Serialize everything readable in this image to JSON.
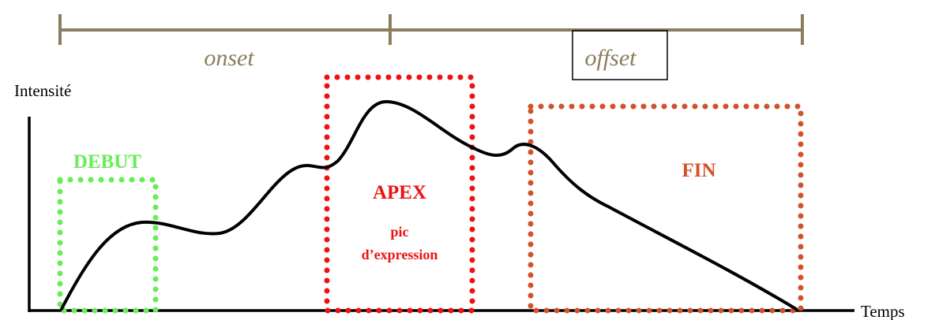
{
  "timeline": {
    "onset_label": "onset",
    "offset_label": "offset",
    "color": "#8b7d5e"
  },
  "axes": {
    "y_label": "Intensité",
    "x_label": "Temps",
    "color": "#000000"
  },
  "phases": {
    "debut": {
      "label": "DEBUT",
      "color": "#66ee55"
    },
    "apex": {
      "label": "APEX",
      "sub_line1": "pic",
      "sub_line2": "d’expression",
      "color": "#ee1111"
    },
    "fin": {
      "label": "FIN",
      "color": "#d4522a"
    }
  },
  "curve": {
    "color": "#000000"
  }
}
